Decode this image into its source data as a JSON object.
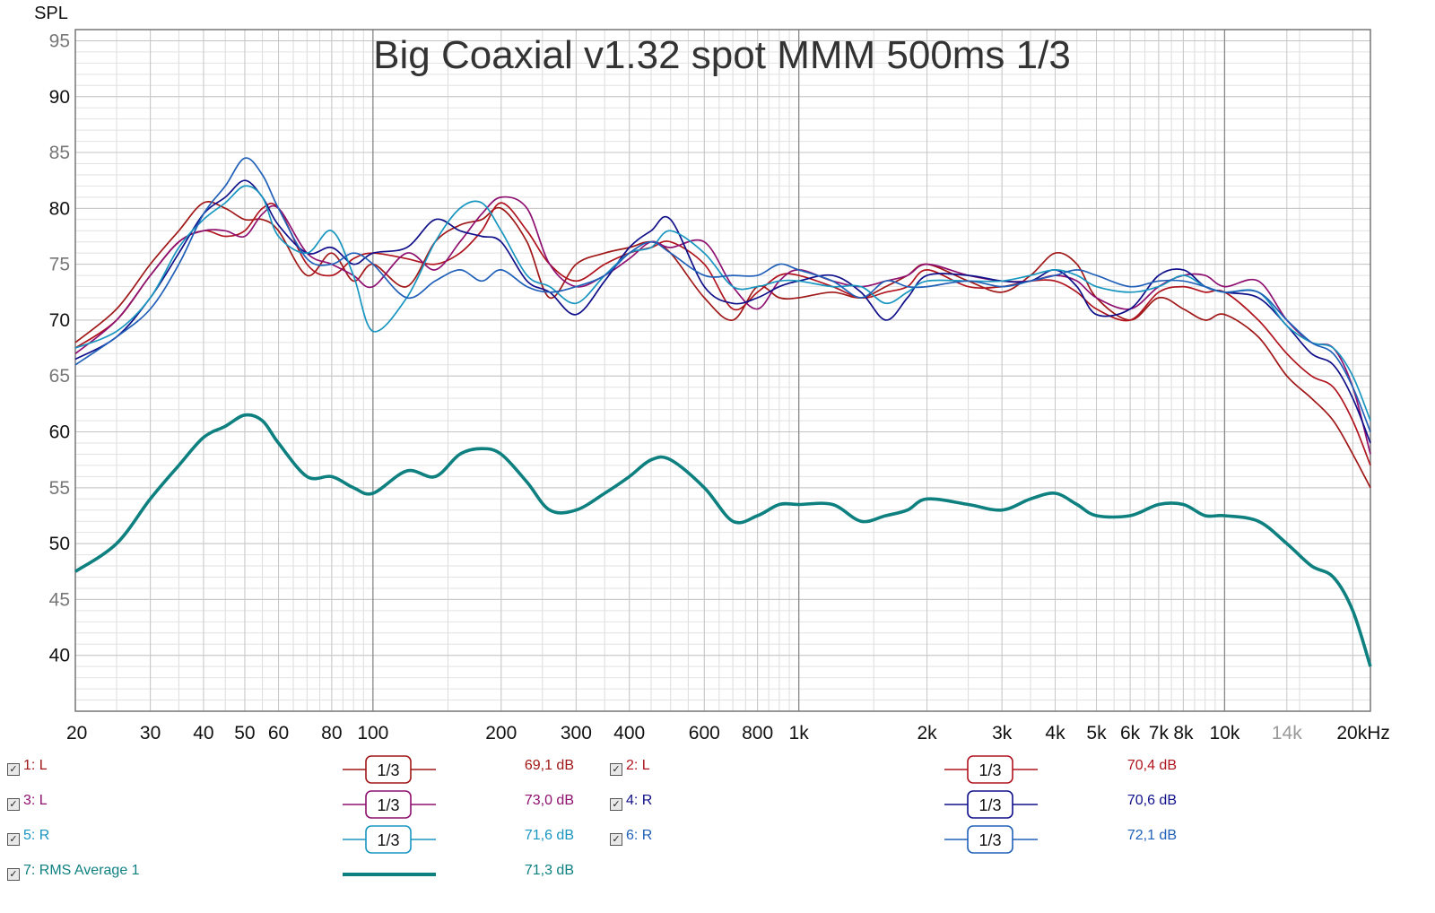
{
  "chart_data": {
    "type": "line",
    "title": "Big Coaxial v1.32 spot MMM 500ms 1/3",
    "ylabel": "SPL",
    "xscale": "log",
    "xlim": [
      20,
      22000
    ],
    "ylim": [
      35,
      96
    ],
    "yticks": [
      40,
      45,
      50,
      55,
      60,
      65,
      70,
      75,
      80,
      85,
      90,
      95
    ],
    "ytick_labels": [
      "40",
      "45",
      "50",
      "55",
      "60",
      "65",
      "70",
      "75",
      "80",
      "85",
      "90",
      "95"
    ],
    "xticks": [
      20,
      30,
      40,
      50,
      60,
      80,
      100,
      200,
      300,
      400,
      600,
      800,
      1000,
      2000,
      3000,
      4000,
      5000,
      6000,
      7000,
      8000,
      10000,
      14000,
      20000
    ],
    "xtick_labels": [
      "20",
      "30",
      "40",
      "50",
      "60",
      "80",
      "100",
      "200",
      "300",
      "400",
      "600",
      "800",
      "1k",
      "2k",
      "3k",
      "4k",
      "5k",
      "6k",
      "7k",
      "8k",
      "10k",
      "14k",
      "20kHz"
    ],
    "grid": true,
    "series": [
      {
        "name": "1: L",
        "color": "#a01818",
        "smoothing": "1/3",
        "level": "69,1 dB",
        "x": [
          20,
          25,
          30,
          35,
          40,
          45,
          50,
          55,
          60,
          70,
          80,
          90,
          100,
          120,
          140,
          160,
          180,
          200,
          230,
          260,
          300,
          350,
          400,
          450,
          500,
          600,
          700,
          800,
          900,
          1000,
          1200,
          1400,
          1600,
          1800,
          2000,
          2500,
          3000,
          3500,
          4000,
          4500,
          5000,
          6000,
          7000,
          8000,
          9000,
          10000,
          12000,
          14000,
          16000,
          18000,
          20000,
          22000
        ],
        "values": [
          68,
          71,
          75,
          78,
          80.5,
          80,
          79,
          79,
          78,
          74,
          76,
          73.5,
          75,
          73,
          77,
          78.5,
          79,
          80,
          77,
          72,
          75,
          76,
          76.5,
          77,
          76,
          72,
          70,
          73,
          72,
          72,
          72.5,
          72,
          73,
          74,
          75,
          73.5,
          72.5,
          74,
          76,
          75,
          72,
          70,
          72,
          71,
          70,
          70.5,
          68.5,
          65,
          63,
          61,
          58,
          55
        ]
      },
      {
        "name": "2: L",
        "color": "#b0141e",
        "smoothing": "1/3",
        "level": "70,4 dB",
        "x": [
          20,
          25,
          30,
          35,
          40,
          45,
          50,
          55,
          60,
          70,
          80,
          90,
          100,
          120,
          140,
          160,
          180,
          200,
          230,
          260,
          300,
          350,
          400,
          450,
          500,
          600,
          700,
          800,
          900,
          1000,
          1200,
          1400,
          1600,
          1800,
          2000,
          2500,
          3000,
          3500,
          4000,
          4500,
          5000,
          6000,
          7000,
          8000,
          9000,
          10000,
          12000,
          14000,
          16000,
          18000,
          20000,
          22000
        ],
        "values": [
          67.5,
          70,
          74,
          77,
          78,
          77.5,
          78,
          80,
          80,
          75,
          74,
          75.5,
          76,
          75.5,
          75,
          76,
          78,
          80.5,
          78,
          75,
          73.5,
          75,
          76,
          76.5,
          77,
          75,
          71,
          72.5,
          74,
          74,
          73,
          72,
          72.5,
          73,
          74.5,
          73,
          73,
          73.5,
          73.5,
          72.5,
          71,
          70,
          72.5,
          73,
          72.5,
          72.5,
          70,
          67,
          65,
          64,
          61,
          57
        ]
      },
      {
        "name": "3: L",
        "color": "#8e1070",
        "smoothing": "1/3",
        "level": "73,0 dB",
        "x": [
          20,
          25,
          30,
          35,
          40,
          45,
          50,
          55,
          60,
          70,
          80,
          90,
          100,
          120,
          140,
          160,
          180,
          200,
          230,
          260,
          300,
          350,
          400,
          450,
          500,
          600,
          700,
          800,
          900,
          1000,
          1200,
          1400,
          1600,
          1800,
          2000,
          2500,
          3000,
          3500,
          4000,
          4500,
          5000,
          6000,
          7000,
          8000,
          9000,
          10000,
          12000,
          14000,
          16000,
          18000,
          20000,
          22000
        ],
        "values": [
          67,
          70,
          74,
          77,
          78,
          78,
          77.5,
          79.5,
          80,
          76,
          75,
          74,
          73,
          76,
          74.5,
          77,
          79.5,
          81,
          80,
          75,
          73,
          74,
          75.5,
          77,
          76.5,
          77,
          73,
          71,
          73.5,
          74.5,
          73.5,
          73,
          73.5,
          74,
          75,
          74,
          73.5,
          73.5,
          74,
          73.5,
          72,
          71,
          73,
          74,
          74,
          73,
          73.5,
          70,
          68,
          67.5,
          64,
          58
        ]
      },
      {
        "name": "4: R",
        "color": "#10108a",
        "smoothing": "1/3",
        "level": "70,6 dB",
        "x": [
          20,
          25,
          30,
          35,
          40,
          45,
          50,
          55,
          60,
          70,
          80,
          90,
          100,
          120,
          140,
          160,
          180,
          200,
          230,
          260,
          300,
          350,
          400,
          450,
          500,
          600,
          700,
          800,
          900,
          1000,
          1200,
          1400,
          1600,
          1800,
          2000,
          2500,
          3000,
          3500,
          4000,
          4500,
          5000,
          6000,
          7000,
          8000,
          9000,
          10000,
          12000,
          14000,
          16000,
          18000,
          20000,
          22000
        ],
        "values": [
          66.5,
          68.5,
          72,
          76,
          79.5,
          81,
          82.5,
          81,
          78.5,
          76,
          76.5,
          75,
          76,
          76.5,
          79,
          78,
          77.5,
          77,
          73.5,
          72.5,
          70.5,
          73.5,
          76.5,
          78,
          79,
          73,
          71.5,
          72,
          73,
          73.5,
          74,
          72.5,
          70,
          72,
          74,
          74,
          73.5,
          73.5,
          74.5,
          73,
          70.5,
          71,
          74,
          74.5,
          73,
          72.5,
          72,
          69.5,
          67,
          66,
          63,
          59
        ]
      },
      {
        "name": "5: R",
        "color": "#1896c0",
        "smoothing": "1/3",
        "level": "71,6 dB",
        "x": [
          20,
          25,
          30,
          35,
          40,
          45,
          50,
          55,
          60,
          70,
          80,
          90,
          100,
          120,
          140,
          160,
          180,
          200,
          230,
          260,
          300,
          350,
          400,
          450,
          500,
          600,
          700,
          800,
          900,
          1000,
          1200,
          1400,
          1600,
          1800,
          2000,
          2500,
          3000,
          3500,
          4000,
          4500,
          5000,
          6000,
          7000,
          8000,
          9000,
          10000,
          12000,
          14000,
          16000,
          18000,
          20000,
          22000
        ],
        "values": [
          67.5,
          69,
          72,
          76.5,
          79,
          80.5,
          82,
          81,
          77.5,
          76,
          78,
          74,
          69,
          72,
          77,
          80,
          80.5,
          78,
          74,
          73,
          71.5,
          74,
          76,
          76.5,
          78,
          76,
          73,
          73,
          73.5,
          73.5,
          73,
          73,
          71.5,
          72.5,
          73.5,
          73.5,
          73.5,
          74,
          74.5,
          74,
          73,
          72.5,
          73,
          74,
          73,
          72.5,
          72.5,
          69.5,
          68,
          67.5,
          65,
          61
        ]
      },
      {
        "name": "6: R",
        "color": "#2060b8",
        "smoothing": "1/3",
        "level": "72,1 dB",
        "x": [
          20,
          25,
          30,
          35,
          40,
          45,
          50,
          55,
          60,
          70,
          80,
          90,
          100,
          120,
          140,
          160,
          180,
          200,
          230,
          260,
          300,
          350,
          400,
          450,
          500,
          600,
          700,
          800,
          900,
          1000,
          1200,
          1400,
          1600,
          1800,
          2000,
          2500,
          3000,
          3500,
          4000,
          4500,
          5000,
          6000,
          7000,
          8000,
          9000,
          10000,
          12000,
          14000,
          16000,
          18000,
          20000,
          22000
        ],
        "values": [
          66,
          68.5,
          71,
          75,
          79.5,
          82,
          84.5,
          83,
          80,
          75.5,
          75,
          76,
          75,
          72,
          73.5,
          74.5,
          73.5,
          74.5,
          73,
          72.5,
          73,
          74,
          76,
          77,
          76,
          74,
          74,
          74,
          75,
          74.5,
          73.5,
          72,
          73.5,
          73,
          73,
          73.5,
          73,
          73.5,
          74,
          74.5,
          74,
          73,
          73.5,
          73.5,
          73,
          72.5,
          72.5,
          70,
          68,
          67,
          64,
          60
        ]
      },
      {
        "name": "7: RMS Average 1",
        "color": "#0e8080",
        "smoothing": "",
        "level": "71,3 dB",
        "x": [
          20,
          25,
          30,
          35,
          40,
          45,
          50,
          55,
          60,
          70,
          80,
          90,
          100,
          120,
          140,
          160,
          180,
          200,
          230,
          260,
          300,
          350,
          400,
          450,
          500,
          600,
          700,
          800,
          900,
          1000,
          1200,
          1400,
          1600,
          1800,
          2000,
          2500,
          3000,
          3500,
          4000,
          4500,
          5000,
          6000,
          7000,
          8000,
          9000,
          10000,
          12000,
          14000,
          16000,
          18000,
          20000,
          22000
        ],
        "values": [
          47.5,
          50,
          54,
          57,
          59.5,
          60.5,
          61.5,
          61,
          59,
          56,
          56,
          55,
          54.5,
          56.5,
          56,
          58,
          58.5,
          58,
          55.5,
          53,
          53,
          54.5,
          56,
          57.5,
          57.5,
          55,
          52,
          52.5,
          53.5,
          53.5,
          53.5,
          52,
          52.5,
          53,
          54,
          53.5,
          53,
          54,
          54.5,
          53.5,
          52.5,
          52.5,
          53.5,
          53.5,
          52.5,
          52.5,
          52,
          50,
          48,
          47,
          44,
          39
        ]
      }
    ]
  }
}
